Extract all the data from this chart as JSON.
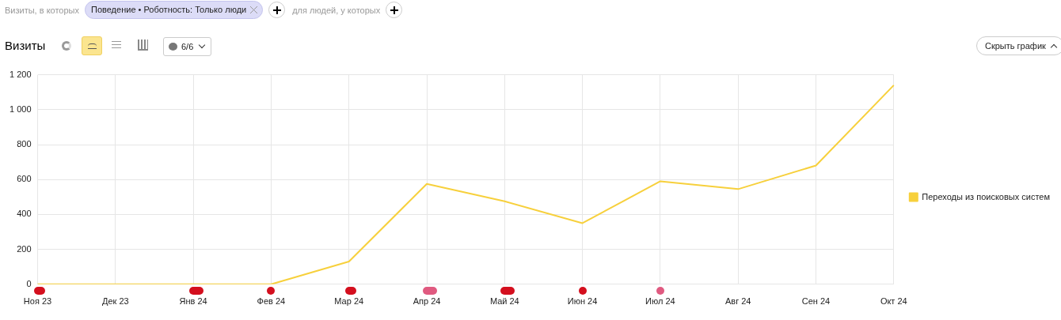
{
  "chart_data": {
    "type": "line",
    "title": "Визиты",
    "annotations": [
      "Визиты, в которых",
      "Поведение • Роботность: Только люди",
      "для людей, у которых",
      "6/6",
      "Скрыть график"
    ],
    "categories": [
      "Ноя 23",
      "Дек 23",
      "Янв 24",
      "Фев 24",
      "Мар 24",
      "Апр 24",
      "Май 24",
      "Июн 24",
      "Июл 24",
      "Авг 24",
      "Сен 24",
      "Окт 24"
    ],
    "series": [
      {
        "name": "Переходы из поисковых систем",
        "color": "#f7d03c",
        "values": [
          0,
          0,
          0,
          0,
          130,
          575,
          475,
          350,
          590,
          545,
          680,
          1140
        ]
      }
    ],
    "ylim": [
      0,
      1200
    ],
    "yticks": [
      0,
      200,
      400,
      600,
      800,
      1000,
      1200
    ],
    "grid": true,
    "legend": "right",
    "marker": "none",
    "line_style": "solid"
  }
}
